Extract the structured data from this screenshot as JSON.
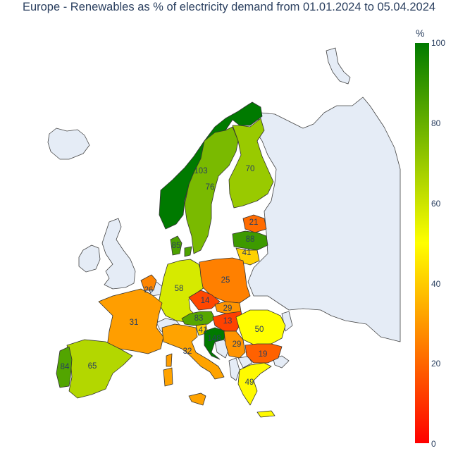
{
  "title": "Europe - Renewables as % of electricity demand from 01.01.2024 to 05.04.2024",
  "colorbar": {
    "title": "%",
    "ticks": [
      "100",
      "80",
      "60",
      "40",
      "20",
      "0"
    ],
    "colors": {
      "0": "#ff0000",
      "50": "#ffff00",
      "100": "#007a00"
    }
  },
  "no_data_color": "#e5ecf6",
  "countries": [
    {
      "id": "NO",
      "value": 103
    },
    {
      "id": "SE",
      "value": 76
    },
    {
      "id": "FI",
      "value": 70
    },
    {
      "id": "EE",
      "value": 21
    },
    {
      "id": "LV",
      "value": 88
    },
    {
      "id": "LT",
      "value": 41
    },
    {
      "id": "DK",
      "value": 85
    },
    {
      "id": "DE",
      "value": 58
    },
    {
      "id": "PL",
      "value": 25
    },
    {
      "id": "NL",
      "value": 26
    },
    {
      "id": "CZ",
      "value": 14
    },
    {
      "id": "SK",
      "value": 29
    },
    {
      "id": "AT",
      "value": 83
    },
    {
      "id": "HU",
      "value": 13
    },
    {
      "id": "RO",
      "value": 50
    },
    {
      "id": "SI",
      "value": 41
    },
    {
      "id": "HR",
      "value": 148
    },
    {
      "id": "RS",
      "value": 29
    },
    {
      "id": "BG",
      "value": 19
    },
    {
      "id": "GR",
      "value": 49
    },
    {
      "id": "FR",
      "value": 31
    },
    {
      "id": "IT",
      "value": 32
    },
    {
      "id": "ES",
      "value": 65
    },
    {
      "id": "PT",
      "value": 84
    }
  ]
}
